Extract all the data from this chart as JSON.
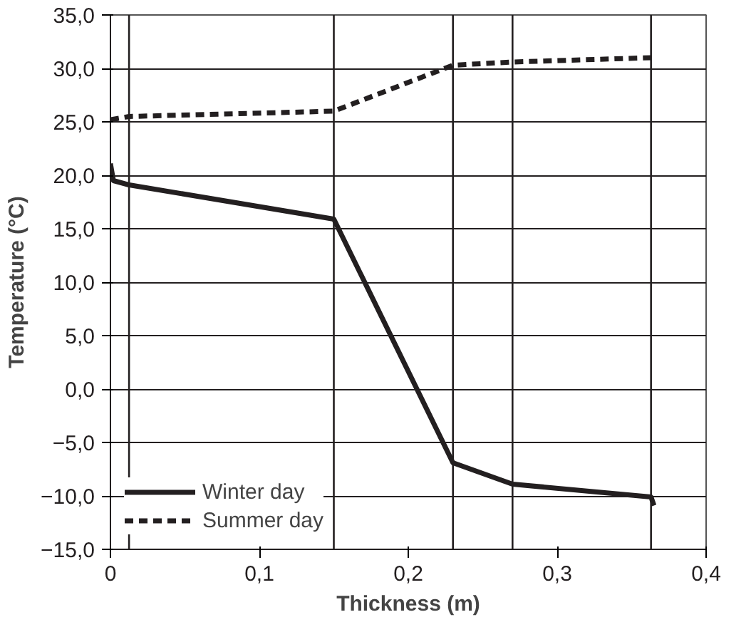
{
  "chart_data": {
    "type": "line",
    "xlabel": "Thickness (m)",
    "ylabel": "Temperature (°C)",
    "series": [
      {
        "name": "Winter day",
        "color": "#231f20",
        "line_style": "solid",
        "x": [
          0,
          0.002,
          0.0125,
          0.15,
          0.23,
          0.27,
          0.363,
          0.365
        ],
        "values": [
          21.1,
          19.5,
          19.1,
          15.9,
          -6.9,
          -8.9,
          -10.1,
          -10.9
        ]
      },
      {
        "name": "Summer day",
        "color": "#231f20",
        "line_style": "dashed",
        "x": [
          0,
          0.0125,
          0.15,
          0.23,
          0.27,
          0.363
        ],
        "values": [
          25.2,
          25.5,
          26.0,
          30.3,
          30.6,
          31.0
        ]
      }
    ],
    "xlim": [
      0,
      0.4
    ],
    "ylim": [
      -15,
      35
    ],
    "xticks": [
      0,
      {
        "value": 0.1,
        "label": "0,1"
      },
      {
        "value": 0.2,
        "label": "0,2"
      },
      {
        "value": 0.3,
        "label": "0,3"
      },
      {
        "value": 0.4,
        "label": "0,4"
      }
    ],
    "yticks": [
      {
        "value": -15,
        "label": "−15,0"
      },
      {
        "value": -10,
        "label": "−10,0"
      },
      {
        "value": -5,
        "label": "−5,0"
      },
      {
        "value": 0,
        "label": "0,0"
      },
      {
        "value": 5,
        "label": "5,0"
      },
      {
        "value": 10,
        "label": "10,0"
      },
      {
        "value": 15,
        "label": "15,0"
      },
      {
        "value": 20,
        "label": "20,0"
      },
      {
        "value": 25,
        "label": "25,0"
      },
      {
        "value": 30,
        "label": "30,0"
      },
      {
        "value": 35,
        "label": "35,0"
      }
    ],
    "ref_lines": [
      {
        "axis": "x",
        "value": 0.0125,
        "color": "#231f20"
      },
      {
        "axis": "x",
        "value": 0.15,
        "color": "#231f20"
      },
      {
        "axis": "x",
        "value": 0.23,
        "color": "#231f20"
      },
      {
        "axis": "x",
        "value": 0.27,
        "color": "#231f20"
      },
      {
        "axis": "x",
        "value": 0.363,
        "color": "#231f20"
      }
    ],
    "grid": "y",
    "legend": "bottom left",
    "marker": "none"
  }
}
